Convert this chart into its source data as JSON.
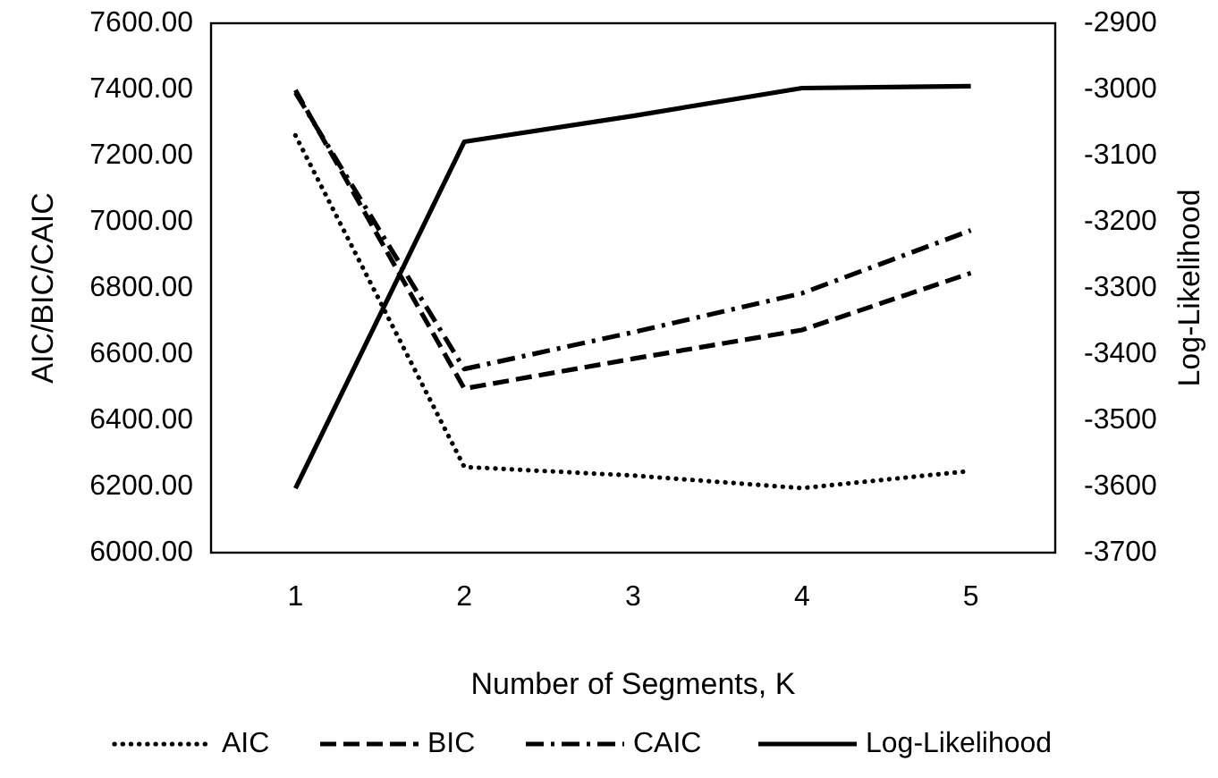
{
  "chart_data": {
    "type": "line",
    "xlabel": "Number of Segments, K",
    "ylabel": "AIC/BIC/CAIC",
    "y2label": "Log-Likelihood",
    "categories": [
      "1",
      "2",
      "3",
      "4",
      "5"
    ],
    "series": [
      {
        "name": "AIC",
        "color": "#000000",
        "line_style": "dotted",
        "values": [
          7261,
          6259,
          6233,
          6195,
          6247
        ]
      },
      {
        "name": "BIC",
        "color": "#000000",
        "line_style": "dashed",
        "values": [
          7398,
          6496,
          6586,
          6673,
          6845
        ]
      },
      {
        "name": "CAIC",
        "color": "#000000",
        "line_style": "dashdot",
        "values": [
          7390,
          6555,
          6666,
          6784,
          6974
        ]
      },
      {
        "name": "Log-Likelihood",
        "color": "#000000",
        "line_style": "solid",
        "axis": "y2",
        "values": [
          -3603,
          -3079,
          -3040,
          -2998,
          -2995
        ]
      }
    ],
    "ylim": [
      6000,
      7600
    ],
    "yticks": [
      {
        "value": 6000,
        "label": "6000.00"
      },
      {
        "value": 6200,
        "label": "6200.00"
      },
      {
        "value": 6400,
        "label": "6400.00"
      },
      {
        "value": 6600,
        "label": "6600.00"
      },
      {
        "value": 6800,
        "label": "6800.00"
      },
      {
        "value": 7000,
        "label": "7000.00"
      },
      {
        "value": 7200,
        "label": "7200.00"
      },
      {
        "value": 7400,
        "label": "7400.00"
      },
      {
        "value": 7600,
        "label": "7600.00"
      }
    ],
    "y2lim": [
      -3700,
      -2900
    ],
    "y2ticks": [
      -3700,
      -3600,
      -3500,
      -3400,
      -3300,
      -3200,
      -3100,
      -3000,
      -2900
    ],
    "grid": false,
    "legend": "bottom",
    "marker": "none"
  }
}
